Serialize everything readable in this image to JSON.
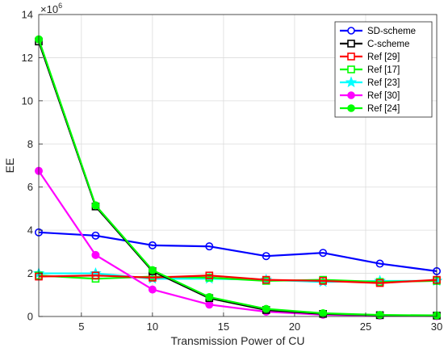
{
  "chart_data": {
    "type": "line",
    "xlabel": "Transmission Power of CU",
    "ylabel": "EE",
    "y_multiplier": "×10",
    "y_exponent": "6",
    "xlim": [
      2,
      30
    ],
    "ylim": [
      0,
      14
    ],
    "xticks": [
      5,
      10,
      15,
      20,
      25,
      30
    ],
    "yticks": [
      0,
      2,
      4,
      6,
      8,
      10,
      12,
      14
    ],
    "grid": true,
    "legend_position": "top-right",
    "series": [
      {
        "name": "SD-scheme",
        "color": "#0000ff",
        "marker": "circle",
        "x": [
          2,
          6,
          10,
          14,
          18,
          22,
          26,
          30
        ],
        "y": [
          3.9,
          3.75,
          3.3,
          3.25,
          2.8,
          2.95,
          2.45,
          2.1
        ]
      },
      {
        "name": "C-scheme",
        "color": "#000000",
        "marker": "square",
        "x": [
          2,
          6,
          10,
          14,
          18,
          22,
          26,
          30
        ],
        "y": [
          12.75,
          5.1,
          2.1,
          0.85,
          0.3,
          0.12,
          0.06,
          0.04
        ]
      },
      {
        "name": "Ref [29]",
        "color": "#ff0000",
        "marker": "square",
        "x": [
          2,
          6,
          10,
          14,
          18,
          22,
          26,
          30
        ],
        "y": [
          1.85,
          1.9,
          1.8,
          1.9,
          1.7,
          1.65,
          1.55,
          1.7
        ]
      },
      {
        "name": "Ref [17]",
        "color": "#00ff00",
        "marker": "square",
        "x": [
          2,
          6,
          10,
          14,
          18,
          22,
          26,
          30
        ],
        "y": [
          1.9,
          1.75,
          1.85,
          1.8,
          1.65,
          1.7,
          1.6,
          1.65
        ]
      },
      {
        "name": "Ref [23]",
        "color": "#00ffff",
        "marker": "star",
        "x": [
          2,
          6,
          10,
          14,
          18,
          22,
          26,
          30
        ],
        "y": [
          2.0,
          2.0,
          1.75,
          1.75,
          1.7,
          1.6,
          1.65,
          1.65
        ]
      },
      {
        "name": "Ref [30]",
        "color": "#ff00ff",
        "marker": "circle",
        "x": [
          2,
          6,
          10,
          14,
          18,
          22,
          26,
          30
        ],
        "y": [
          6.75,
          2.85,
          1.25,
          0.55,
          0.22,
          0.08,
          0.04,
          0.02
        ]
      },
      {
        "name": "Ref [24]",
        "color": "#00ff00",
        "marker": "circle",
        "x": [
          2,
          6,
          10,
          14,
          18,
          22,
          26,
          30
        ],
        "y": [
          12.85,
          5.15,
          2.15,
          0.9,
          0.35,
          0.15,
          0.07,
          0.05
        ]
      }
    ]
  }
}
